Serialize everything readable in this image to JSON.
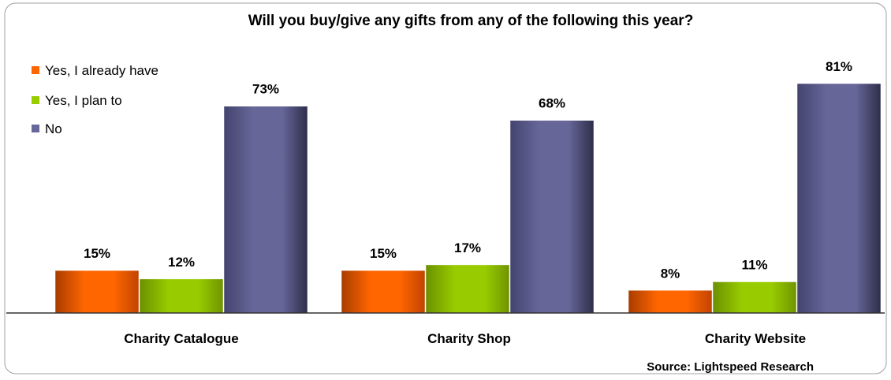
{
  "chart_data": {
    "type": "bar",
    "title": "Will you buy/give any gifts from any of the following this year?",
    "categories": [
      "Charity Catalogue",
      "Charity Shop",
      "Charity Website"
    ],
    "series": [
      {
        "name": "Yes, I already have",
        "values": [
          15,
          15,
          8
        ],
        "labels": [
          "15%",
          "15%",
          "8%"
        ],
        "color": "#ff6600"
      },
      {
        "name": "Yes, I plan to",
        "values": [
          12,
          17,
          11
        ],
        "labels": [
          "12%",
          "17%",
          "11%"
        ],
        "color": "#99cc00"
      },
      {
        "name": "No",
        "values": [
          73,
          68,
          81
        ],
        "labels": [
          "73%",
          "68%",
          "81%"
        ],
        "color": "#666699"
      }
    ],
    "ylim": [
      0,
      100
    ],
    "grid": false,
    "legend": "top-left",
    "source": "Source: Lightspeed Research"
  }
}
